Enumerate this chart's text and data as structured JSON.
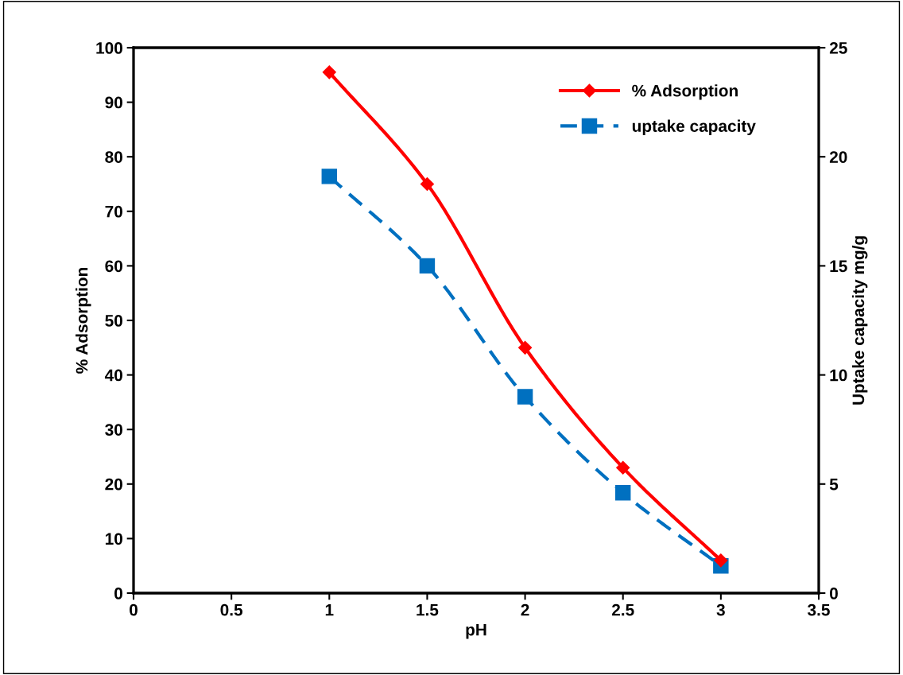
{
  "chart_data": {
    "type": "line",
    "xlabel": "pH",
    "ylabel": "% Adsorption",
    "y2label": "Uptake capacity mg/g",
    "x": [
      1,
      1.5,
      2,
      2.5,
      3
    ],
    "series": [
      {
        "name": "% Adsorption",
        "color": "#ff0000",
        "values": [
          95.5,
          75,
          45,
          23,
          6
        ],
        "marker": "diamond",
        "line_style": "solid"
      },
      {
        "name": "uptake capacity",
        "color": "#0070c0",
        "values": [
          19.1,
          15,
          9,
          4.6,
          1.25
        ],
        "axis": "y2",
        "marker": "square",
        "line_style": "dashed"
      }
    ],
    "xlim": [
      0,
      3.5
    ],
    "xticks": [
      0,
      0.5,
      1,
      1.5,
      2,
      2.5,
      3,
      3.5
    ],
    "ylim": [
      0,
      100
    ],
    "yticks": [
      0,
      10,
      20,
      30,
      40,
      50,
      60,
      70,
      80,
      90,
      100
    ],
    "y2lim": [
      0,
      25
    ],
    "y2ticks": [
      0,
      5,
      10,
      15,
      20,
      25
    ],
    "grid": false,
    "legend": "top right"
  }
}
